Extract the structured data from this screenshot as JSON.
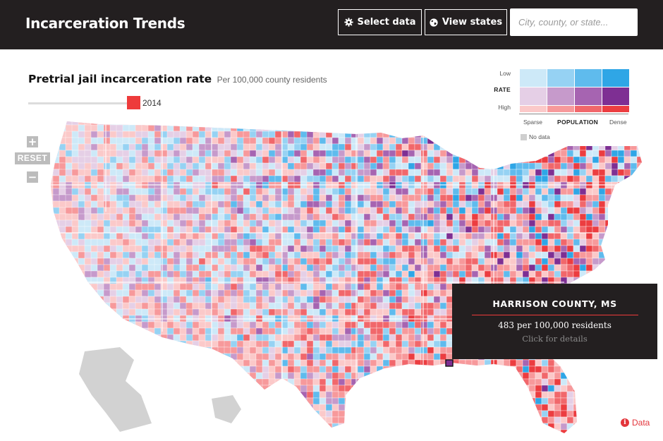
{
  "header": {
    "title": "Incarceration Trends",
    "select_data_label": "Select data",
    "view_states_label": "View states",
    "search_placeholder": "City, county, or state..."
  },
  "map": {
    "title": "Pretrial jail incarceration rate",
    "subtitle": "Per 100,000 county residents",
    "year": "2014",
    "zoom_in_label": "+",
    "reset_label": "RESET",
    "zoom_out_label": "−",
    "region_colors": {
      "no_data": "#cfcfcf",
      "land_outline": "#ffffff"
    }
  },
  "legend": {
    "rate_low": "Low",
    "rate_label": "RATE",
    "rate_high": "High",
    "pop_sparse": "Sparse",
    "pop_label": "POPULATION",
    "pop_dense": "Dense",
    "no_data_label": "No data",
    "colors": [
      [
        "#cde9f8",
        "#96d2f3",
        "#5fbbed",
        "#2fa6e6"
      ],
      [
        "#e5cfe6",
        "#c69acb",
        "#a664b1",
        "#7e2f93"
      ],
      [
        "#fbc9c9",
        "#f7999b",
        "#f1676b",
        "#ec3d40"
      ]
    ]
  },
  "tooltip": {
    "county": "HARRISON COUNTY, MS",
    "rate_text": "483 per 100,000 residents",
    "hint": "Click for details"
  },
  "footer": {
    "data_link": "Data",
    "info_glyph": "i"
  }
}
